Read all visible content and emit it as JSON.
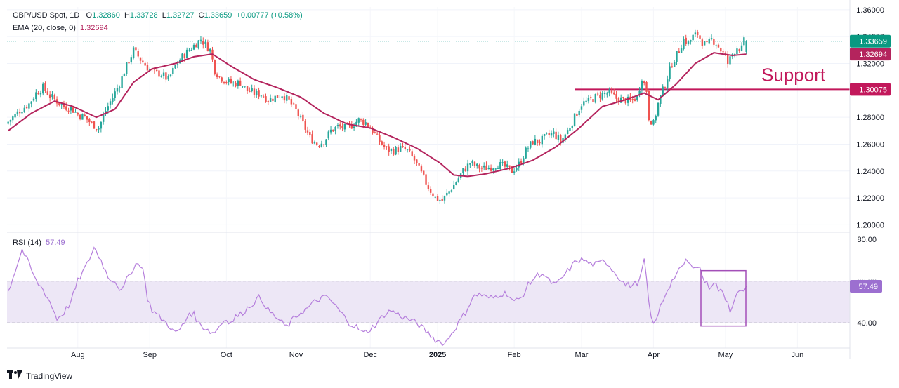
{
  "legend": {
    "symbol": "GBP/USD Spot, 1D",
    "open_label": "O",
    "open": "1.32860",
    "high_label": "H",
    "high": "1.33728",
    "low_label": "L",
    "low": "1.32727",
    "close_label": "C",
    "close": "1.33659",
    "change": "+0.00777 (+0.58%)",
    "ema_label": "EMA (20, close, 0)",
    "ema_value": "1.32694",
    "rsi_label": "RSI (14)",
    "rsi_value": "57.49"
  },
  "brand": {
    "name": "TradingView"
  },
  "colors": {
    "up": "#26a69a",
    "down": "#ef5350",
    "ema": "#b4245d",
    "support": "#c2185b",
    "rsi": "#b57edc",
    "rsi_band": "#ede7f6"
  },
  "chart_data": {
    "type": "candlestick",
    "price_axis": {
      "ylim": [
        1.195,
        1.362
      ],
      "ticks": [
        "1.36000",
        "1.34000",
        "1.32000",
        "1.28000",
        "1.26000",
        "1.24000",
        "1.22000",
        "1.20000"
      ]
    },
    "x_labels": [
      "Aug",
      "Sep",
      "Oct",
      "Nov",
      "Dec",
      "2025",
      "Feb",
      "Mar",
      "Apr",
      "May",
      "Jun"
    ],
    "price_labels": {
      "last": "1.33659",
      "ema": "1.32694",
      "support": "1.30075"
    },
    "support": {
      "value": 1.30075,
      "label": "Support"
    },
    "anchors": [
      [
        0,
        1.275
      ],
      [
        3,
        1.28
      ],
      [
        6,
        1.285
      ],
      [
        10,
        1.29
      ],
      [
        13,
        1.298
      ],
      [
        16,
        1.302
      ],
      [
        19,
        1.296
      ],
      [
        22,
        1.292
      ],
      [
        25,
        1.288
      ],
      [
        28,
        1.287
      ],
      [
        31,
        1.282
      ],
      [
        34,
        1.28
      ],
      [
        37,
        1.275
      ],
      [
        40,
        1.272
      ],
      [
        43,
        1.285
      ],
      [
        46,
        1.295
      ],
      [
        49,
        1.305
      ],
      [
        52,
        1.318
      ],
      [
        55,
        1.33
      ],
      [
        58,
        1.323
      ],
      [
        61,
        1.317
      ],
      [
        64,
        1.313
      ],
      [
        67,
        1.312
      ],
      [
        70,
        1.308
      ],
      [
        73,
        1.318
      ],
      [
        76,
        1.325
      ],
      [
        79,
        1.33
      ],
      [
        82,
        1.335
      ],
      [
        84,
        1.338
      ],
      [
        86,
        1.334
      ],
      [
        88,
        1.33
      ],
      [
        90,
        1.315
      ],
      [
        92,
        1.31
      ],
      [
        95,
        1.307
      ],
      [
        98,
        1.305
      ],
      [
        101,
        1.306
      ],
      [
        104,
        1.3
      ],
      [
        107,
        1.298
      ],
      [
        110,
        1.297
      ],
      [
        113,
        1.293
      ],
      [
        116,
        1.295
      ],
      [
        119,
        1.297
      ],
      [
        122,
        1.292
      ],
      [
        125,
        1.285
      ],
      [
        128,
        1.275
      ],
      [
        131,
        1.265
      ],
      [
        134,
        1.26
      ],
      [
        137,
        1.262
      ],
      [
        140,
        1.27
      ],
      [
        143,
        1.273
      ],
      [
        146,
        1.272
      ],
      [
        149,
        1.274
      ],
      [
        152,
        1.278
      ],
      [
        155,
        1.276
      ],
      [
        158,
        1.27
      ],
      [
        161,
        1.262
      ],
      [
        164,
        1.256
      ],
      [
        167,
        1.255
      ],
      [
        170,
        1.257
      ],
      [
        173,
        1.255
      ],
      [
        176,
        1.248
      ],
      [
        179,
        1.238
      ],
      [
        182,
        1.228
      ],
      [
        185,
        1.22
      ],
      [
        188,
        1.218
      ],
      [
        191,
        1.225
      ],
      [
        194,
        1.232
      ],
      [
        197,
        1.24
      ],
      [
        200,
        1.246
      ],
      [
        203,
        1.243
      ],
      [
        206,
        1.242
      ],
      [
        209,
        1.243
      ],
      [
        212,
        1.245
      ],
      [
        215,
        1.243
      ],
      [
        218,
        1.24
      ],
      [
        221,
        1.245
      ],
      [
        224,
        1.255
      ],
      [
        227,
        1.262
      ],
      [
        230,
        1.262
      ],
      [
        233,
        1.266
      ],
      [
        236,
        1.268
      ],
      [
        239,
        1.262
      ],
      [
        242,
        1.27
      ],
      [
        245,
        1.28
      ],
      [
        248,
        1.29
      ],
      [
        251,
        1.292
      ],
      [
        254,
        1.295
      ],
      [
        257,
        1.297
      ],
      [
        260,
        1.298
      ],
      [
        263,
        1.294
      ],
      [
        266,
        1.293
      ],
      [
        269,
        1.292
      ],
      [
        272,
        1.295
      ],
      [
        274,
        1.31
      ],
      [
        276,
        1.3
      ],
      [
        277,
        1.28
      ],
      [
        279,
        1.275
      ],
      [
        281,
        1.29
      ],
      [
        284,
        1.305
      ],
      [
        287,
        1.32
      ],
      [
        290,
        1.33
      ],
      [
        292,
        1.338
      ],
      [
        294,
        1.335
      ],
      [
        296,
        1.34
      ],
      [
        298,
        1.342
      ],
      [
        300,
        1.336
      ],
      [
        302,
        1.333
      ],
      [
        304,
        1.338
      ],
      [
        306,
        1.335
      ],
      [
        308,
        1.33
      ],
      [
        310,
        1.325
      ],
      [
        311,
        1.32
      ],
      [
        313,
        1.327
      ],
      [
        315,
        1.332
      ],
      [
        317,
        1.331
      ],
      [
        318,
        1.3366
      ]
    ],
    "ema_anchors": [
      [
        0,
        1.27
      ],
      [
        10,
        1.283
      ],
      [
        20,
        1.292
      ],
      [
        28,
        1.288
      ],
      [
        38,
        1.28
      ],
      [
        46,
        1.286
      ],
      [
        54,
        1.306
      ],
      [
        62,
        1.316
      ],
      [
        72,
        1.32
      ],
      [
        80,
        1.325
      ],
      [
        88,
        1.327
      ],
      [
        96,
        1.318
      ],
      [
        106,
        1.308
      ],
      [
        116,
        1.302
      ],
      [
        126,
        1.295
      ],
      [
        136,
        1.283
      ],
      [
        146,
        1.275
      ],
      [
        156,
        1.272
      ],
      [
        166,
        1.265
      ],
      [
        176,
        1.257
      ],
      [
        186,
        1.246
      ],
      [
        192,
        1.237
      ],
      [
        198,
        1.236
      ],
      [
        206,
        1.238
      ],
      [
        216,
        1.242
      ],
      [
        226,
        1.248
      ],
      [
        236,
        1.258
      ],
      [
        246,
        1.272
      ],
      [
        256,
        1.288
      ],
      [
        266,
        1.293
      ],
      [
        274,
        1.298
      ],
      [
        280,
        1.293
      ],
      [
        288,
        1.305
      ],
      [
        296,
        1.32
      ],
      [
        304,
        1.328
      ],
      [
        312,
        1.326
      ],
      [
        318,
        1.32694
      ]
    ],
    "rsi_axis": {
      "ylim": [
        30,
        82
      ],
      "ticks": [
        "80.00",
        "40.00"
      ],
      "band": [
        40,
        60
      ]
    },
    "rsi_anchors": [
      [
        0,
        55
      ],
      [
        6,
        75
      ],
      [
        9,
        68
      ],
      [
        12,
        60
      ],
      [
        15,
        56
      ],
      [
        18,
        50
      ],
      [
        21,
        42
      ],
      [
        24,
        45
      ],
      [
        27,
        50
      ],
      [
        30,
        60
      ],
      [
        34,
        68
      ],
      [
        37,
        76
      ],
      [
        40,
        70
      ],
      [
        43,
        62
      ],
      [
        46,
        60
      ],
      [
        49,
        55
      ],
      [
        52,
        63
      ],
      [
        55,
        68
      ],
      [
        57,
        68
      ],
      [
        58,
        66
      ],
      [
        60,
        52
      ],
      [
        62,
        46
      ],
      [
        64,
        44
      ],
      [
        66,
        42
      ],
      [
        68,
        40
      ],
      [
        70,
        38
      ],
      [
        72,
        35
      ],
      [
        74,
        37
      ],
      [
        76,
        40
      ],
      [
        78,
        45
      ],
      [
        80,
        44
      ],
      [
        82,
        40
      ],
      [
        84,
        38
      ],
      [
        86,
        37
      ],
      [
        88,
        35
      ],
      [
        90,
        37
      ],
      [
        92,
        40
      ],
      [
        94,
        42
      ],
      [
        96,
        40
      ],
      [
        98,
        43
      ],
      [
        100,
        44
      ],
      [
        102,
        46
      ],
      [
        104,
        48
      ],
      [
        106,
        50
      ],
      [
        108,
        52
      ],
      [
        110,
        50
      ],
      [
        112,
        46
      ],
      [
        114,
        44
      ],
      [
        116,
        42
      ],
      [
        118,
        40
      ],
      [
        120,
        38
      ],
      [
        123,
        42
      ],
      [
        126,
        45
      ],
      [
        129,
        47
      ],
      [
        132,
        50
      ],
      [
        135,
        52
      ],
      [
        138,
        52
      ],
      [
        141,
        48
      ],
      [
        144,
        44
      ],
      [
        147,
        40
      ],
      [
        150,
        38
      ],
      [
        153,
        35
      ],
      [
        156,
        37
      ],
      [
        159,
        40
      ],
      [
        162,
        44
      ],
      [
        165,
        46
      ],
      [
        168,
        44
      ],
      [
        172,
        42
      ],
      [
        176,
        40
      ],
      [
        180,
        36
      ],
      [
        184,
        32
      ],
      [
        188,
        30
      ],
      [
        191,
        35
      ],
      [
        194,
        40
      ],
      [
        197,
        45
      ],
      [
        200,
        52
      ],
      [
        203,
        54
      ],
      [
        206,
        52
      ],
      [
        209,
        52
      ],
      [
        212,
        54
      ],
      [
        215,
        54
      ],
      [
        218,
        50
      ],
      [
        221,
        52
      ],
      [
        224,
        58
      ],
      [
        227,
        62
      ],
      [
        230,
        64
      ],
      [
        233,
        60
      ],
      [
        236,
        58
      ],
      [
        239,
        62
      ],
      [
        242,
        66
      ],
      [
        245,
        70
      ],
      [
        248,
        70
      ],
      [
        251,
        68
      ],
      [
        254,
        68
      ],
      [
        257,
        70
      ],
      [
        260,
        66
      ],
      [
        263,
        62
      ],
      [
        266,
        58
      ],
      [
        269,
        58
      ],
      [
        272,
        60
      ],
      [
        274,
        70
      ],
      [
        276,
        50
      ],
      [
        277,
        42
      ],
      [
        279,
        40
      ],
      [
        281,
        48
      ],
      [
        284,
        56
      ],
      [
        287,
        62
      ],
      [
        290,
        66
      ],
      [
        292,
        70
      ],
      [
        294,
        67
      ],
      [
        296,
        68
      ],
      [
        298,
        66
      ],
      [
        300,
        60
      ],
      [
        302,
        57
      ],
      [
        304,
        60
      ],
      [
        306,
        56
      ],
      [
        308,
        54
      ],
      [
        310,
        50
      ],
      [
        311,
        46
      ],
      [
        313,
        52
      ],
      [
        315,
        55
      ],
      [
        317,
        54
      ],
      [
        318,
        57.49
      ]
    ],
    "rsi_labels": {
      "current": "57.49",
      "threshold": "60.00"
    },
    "annotations": [
      "Support"
    ]
  }
}
